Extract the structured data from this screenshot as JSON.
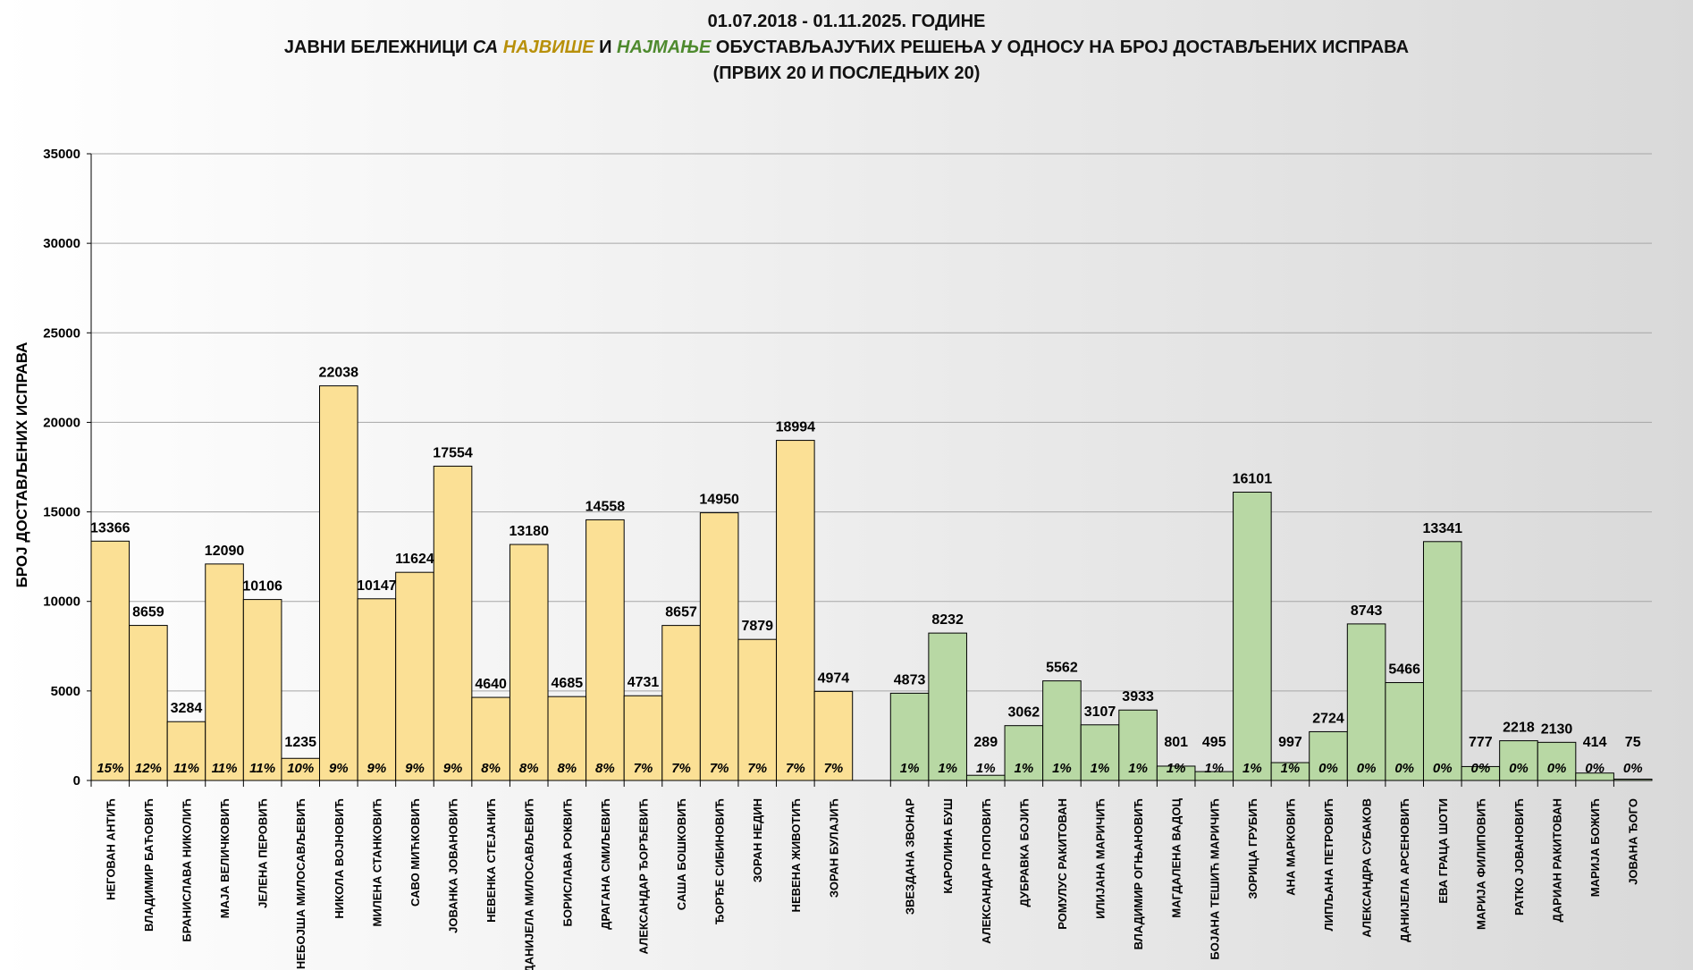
{
  "title": {
    "line1": "01.07.2018  - 01.11.2025. ГОДИНЕ",
    "line2_a": "ЈАВНИ БЕЛЕЖНИЦИ ",
    "line2_b": "СА ",
    "line2_most": "НАЈВИШЕ",
    "line2_c": " И ",
    "line2_least": "НАЈМАЊЕ",
    "line2_d": " ОБУСТАВЉАЈУЋИХ РЕШЕЊА У ОДНОСУ НА БРОЈ ДОСТАВЉЕНИХ ИСПРАВА",
    "line3": "(ПРВИХ 20 И ПОСЛЕДЊИХ 20)"
  },
  "colors": {
    "most_text": "#b8900a",
    "least_text": "#4e8a2e",
    "top_bars": "#fbe095",
    "bottom_bars": "#b8d8a4",
    "grid": "#a6a6a6"
  },
  "chart_data": {
    "type": "bar",
    "ylabel": "БРОЈ ДОСТАВЉЕНИХ ИСПРАВА",
    "ylim": [
      0,
      35000
    ],
    "yticks": [
      0,
      5000,
      10000,
      15000,
      20000,
      25000,
      30000,
      35000
    ],
    "grid": true,
    "groups": [
      {
        "categories": [
          "НЕГОВАН АНТИЋ",
          "ВЛАДИМИР БАЋОВИЋ",
          "БРАНИСЛАВА НИКОЛИЋ",
          "МАЈА ВЕЛИЧКОВИЋ",
          "ЈЕЛЕНА ПЕРОВИЋ",
          "НЕБОЈША МИЛОСАВЉЕВИЋ",
          "НИКОЛА ВОЈНОВИЋ",
          "МИЛЕНА СТАНКОВИЋ",
          "САВО МИЋКОВИЋ",
          "ЈОВАНКА ЈОВАНОВИЋ",
          "НЕВЕНКА СТЕЈАНИЋ",
          "ДАНИЈЕЛА МИЛОСАВЉЕВИЋ",
          "БОРИСЛАВА РОКВИЋ",
          "ДРАГАНА СМИЉЕВИЋ",
          "АЛЕКСАНДАР ЂОРЂЕВИЋ",
          "САША БОШКОВИЋ",
          "ЂОРЂЕ СИБИНОВИЋ",
          "ЗОРАН НЕДИН",
          "НЕВЕНА ЖИВОТИЋ",
          "ЗОРАН БУЛАЈИЋ"
        ],
        "values": [
          13366,
          8659,
          3284,
          12090,
          10106,
          1235,
          22038,
          10147,
          11624,
          17554,
          4640,
          13180,
          4685,
          14558,
          4731,
          8657,
          14950,
          7879,
          18994,
          4974
        ],
        "percents": [
          "15%",
          "12%",
          "11%",
          "11%",
          "11%",
          "10%",
          "9%",
          "9%",
          "9%",
          "9%",
          "8%",
          "8%",
          "8%",
          "8%",
          "7%",
          "7%",
          "7%",
          "7%",
          "7%",
          "7%"
        ]
      },
      {
        "categories": [
          "ЗВЕЗДАНА ЗВОНАР",
          "КАРОЛИНА БУШ",
          "АЛЕКСАНДАР ПОПОВИЋ",
          "ДУБРАВКА БОЈИЋ",
          "РОМУЛУС РАКИТОВАН",
          "ИЛИЈАНА МАРИЧИЋ",
          "ВЛАДИМИР ОГЊАНОВИЋ",
          "МАГДАЛЕНА ВАДОЦ",
          "БОЈАНА ТЕШИЋ МАРИЧИЋ",
          "ЗОРИЦА ГРУБИЋ",
          "АНА МАРКОВИЋ",
          "ЛИПЉАНА ПЕТРОВИЋ",
          "АЛЕКСАНДРА СУБАКОВ",
          "ДАНИЈЕЛА АРСЕНОВИЋ",
          "ЕВА ГРАЦА ШОТИ",
          "МАРИЈА ФИЛИПОВИЋ",
          "РАТКО ЈОВАНОВИЋ",
          "ДАРИАН РАКИТОВАН",
          "МАРИЈА БОЖИЋ",
          "ЈОВАНА ЂОГО"
        ],
        "values": [
          4873,
          8232,
          289,
          3062,
          5562,
          3107,
          3933,
          801,
          495,
          16101,
          997,
          2724,
          8743,
          5466,
          13341,
          777,
          2218,
          2130,
          414,
          75
        ],
        "percents": [
          "1%",
          "1%",
          "1%",
          "1%",
          "1%",
          "1%",
          "1%",
          "1%",
          "1%",
          "1%",
          "1%",
          "0%",
          "0%",
          "0%",
          "0%",
          "0%",
          "0%",
          "0%",
          "0%",
          "0%"
        ]
      }
    ]
  }
}
